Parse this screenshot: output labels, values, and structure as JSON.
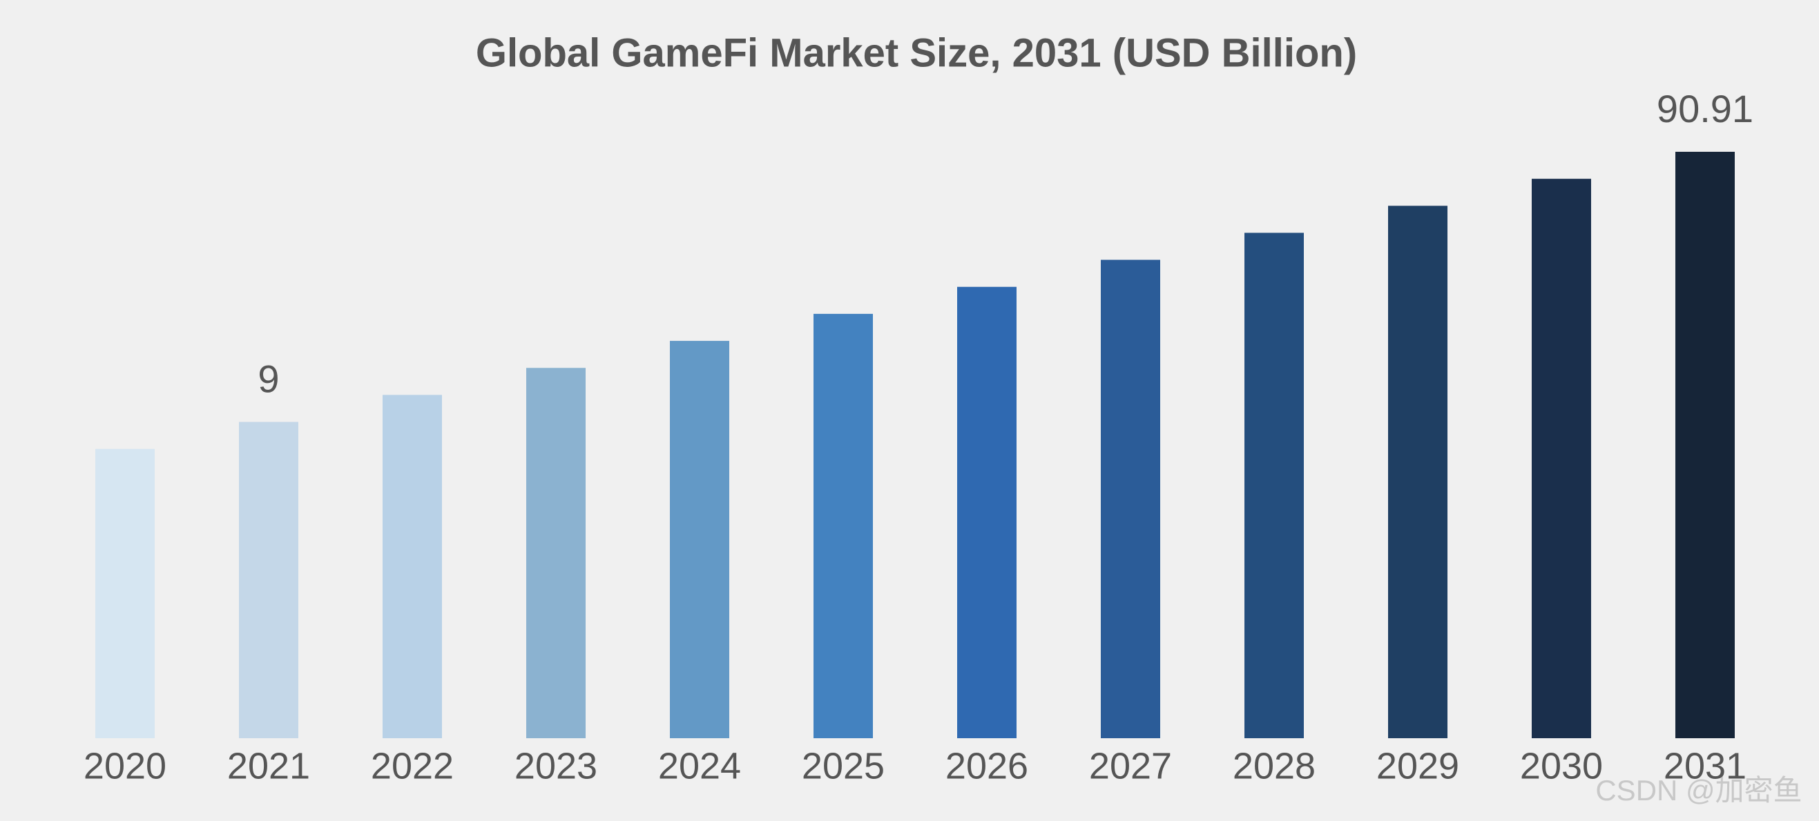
{
  "chart_data": {
    "type": "bar",
    "title": "Global GameFi Market Size, 2031 (USD Billion)",
    "categories": [
      "2020",
      "2021",
      "2022",
      "2023",
      "2024",
      "2025",
      "2026",
      "2027",
      "2028",
      "2029",
      "2030",
      "2031"
    ],
    "values": [
      7.14,
      9,
      11.34,
      14.29,
      18.01,
      22.7,
      28.6,
      36.05,
      45.43,
      57.25,
      72.14,
      90.91
    ],
    "value_labels": [
      null,
      "9",
      null,
      null,
      null,
      null,
      null,
      null,
      null,
      null,
      null,
      "90.91"
    ],
    "colors": [
      "#d6e6f2",
      "#c4d7e8",
      "#b8d1e7",
      "#8bb2d0",
      "#6399c6",
      "#4382c0",
      "#2f69b1",
      "#2b5c98",
      "#244e7e",
      "#1f3f63",
      "#1a2f4c",
      "#162538"
    ],
    "log_scale": true,
    "ylim": [
      0.6,
      120
    ],
    "watermark": "CSDN @加密鱼"
  }
}
